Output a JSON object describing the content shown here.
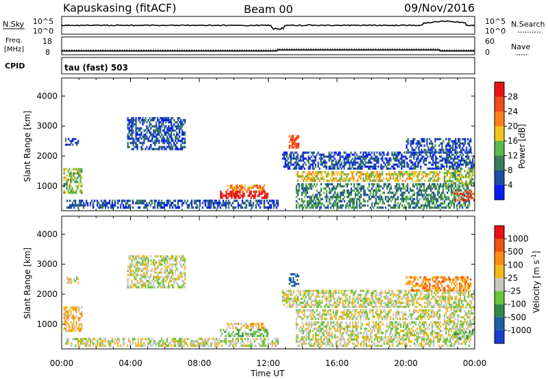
{
  "header": {
    "station": "Kapuskasing (fitACF)",
    "beam": "Beam 00",
    "date": "09/Nov/2016"
  },
  "top_panels": {
    "nsky_label": "N.Sky",
    "nsearch_label": "N.Search",
    "noise_ticks": [
      "10^5",
      "10^0"
    ],
    "noise_ticks_right": [
      "10^5",
      "10^0"
    ],
    "freq_label": "Freq.",
    "freq_unit": "[MHz]",
    "freq_ticks": [
      "18",
      "8"
    ],
    "nave_label": "Nave",
    "nave_ticks": [
      "60",
      "0"
    ],
    "cpid_label": "CPID",
    "cpid_value": "tau (fast) 503"
  },
  "chart_data": [
    {
      "type": "heatmap",
      "name_hint": "power",
      "ylabel": "Slant Range [km]",
      "xlabel": "",
      "x_ticks": [
        "00:00",
        "04:00",
        "08:00",
        "12:00",
        "16:00",
        "20:00",
        "00:00"
      ],
      "y_ticks": [
        1000,
        2000,
        3000,
        4000
      ],
      "ylim": [
        180,
        4600
      ],
      "xlim_hours": [
        0,
        24
      ],
      "colorbar": {
        "label": "Power [dB]",
        "ticks": [
          4,
          8,
          12,
          16,
          20,
          24,
          28
        ],
        "range": [
          0,
          30
        ],
        "colors": [
          "#0a1aff",
          "#1f4fa6",
          "#3d7d59",
          "#5cb84a",
          "#f2c51f",
          "#ff7f1a",
          "#f24a1a",
          "#e81414"
        ]
      },
      "regions": [
        {
          "t0": 0.1,
          "t1": 1.2,
          "r0": 750,
          "r1": 1600,
          "level": 3
        },
        {
          "t0": 0.2,
          "t1": 12.6,
          "r0": 250,
          "r1": 550,
          "level": 1
        },
        {
          "t0": 0.2,
          "t1": 1.0,
          "r0": 2350,
          "r1": 2600,
          "level": 1
        },
        {
          "t0": 3.8,
          "t1": 7.2,
          "r0": 2200,
          "r1": 3300,
          "level": 1
        },
        {
          "t0": 9.2,
          "t1": 12.0,
          "r0": 580,
          "r1": 850,
          "level": 7
        },
        {
          "t0": 9.6,
          "t1": 11.8,
          "r0": 850,
          "r1": 1050,
          "level": 5
        },
        {
          "t0": 13.2,
          "t1": 13.8,
          "r0": 2250,
          "r1": 2700,
          "level": 6
        },
        {
          "t0": 12.8,
          "t1": 24.0,
          "r0": 1550,
          "r1": 2150,
          "level": 1
        },
        {
          "t0": 13.6,
          "t1": 22.0,
          "r0": 1150,
          "r1": 1500,
          "level": 4
        },
        {
          "t0": 13.6,
          "t1": 23.8,
          "r0": 250,
          "r1": 1100,
          "level": 2
        },
        {
          "t0": 22.2,
          "t1": 24.0,
          "r0": 1000,
          "r1": 1600,
          "level": 3
        },
        {
          "t0": 22.8,
          "t1": 24.0,
          "r0": 500,
          "r1": 850,
          "level": 6
        },
        {
          "t0": 20.0,
          "t1": 23.8,
          "r0": 2100,
          "r1": 2600,
          "level": 1
        }
      ]
    },
    {
      "type": "heatmap",
      "name_hint": "velocity",
      "ylabel": "Slant Range [km]",
      "xlabel": "Time UT",
      "x_ticks": [
        "00:00",
        "04:00",
        "08:00",
        "12:00",
        "16:00",
        "20:00",
        "00:00"
      ],
      "y_ticks": [
        1000,
        2000,
        3000,
        4000
      ],
      "ylim": [
        180,
        4600
      ],
      "xlim_hours": [
        0,
        24
      ],
      "colorbar": {
        "label": "Velocity [m s^-1]",
        "ticks": [
          "1000",
          "500",
          "100",
          "25",
          "-25",
          "-100",
          "-500",
          "-1000"
        ],
        "colors": [
          "#1a3fd6",
          "#1f5fa6",
          "#2f8a4a",
          "#69c43a",
          "#c8c8c0",
          "#f5b818",
          "#ff8a10",
          "#f25010",
          "#e81414"
        ]
      },
      "regions": [
        {
          "t0": 0.1,
          "t1": 1.2,
          "r0": 750,
          "r1": 1600,
          "level": 5
        },
        {
          "t0": 0.2,
          "t1": 12.6,
          "r0": 250,
          "r1": 550,
          "level": 4
        },
        {
          "t0": 0.2,
          "t1": 1.0,
          "r0": 2350,
          "r1": 2600,
          "level": 4
        },
        {
          "t0": 3.8,
          "t1": 7.2,
          "r0": 2200,
          "r1": 3300,
          "level": 4
        },
        {
          "t0": 9.2,
          "t1": 12.0,
          "r0": 580,
          "r1": 850,
          "level": 3
        },
        {
          "t0": 9.6,
          "t1": 11.8,
          "r0": 850,
          "r1": 1050,
          "level": 5
        },
        {
          "t0": 13.2,
          "t1": 13.8,
          "r0": 2250,
          "r1": 2700,
          "level": 1
        },
        {
          "t0": 12.8,
          "t1": 24.0,
          "r0": 1550,
          "r1": 2150,
          "level": 4
        },
        {
          "t0": 13.6,
          "t1": 22.0,
          "r0": 1150,
          "r1": 1500,
          "level": 4
        },
        {
          "t0": 13.6,
          "t1": 23.8,
          "r0": 250,
          "r1": 1100,
          "level": 4
        },
        {
          "t0": 22.2,
          "t1": 24.0,
          "r0": 1000,
          "r1": 1600,
          "level": 4
        },
        {
          "t0": 22.8,
          "t1": 24.0,
          "r0": 500,
          "r1": 850,
          "level": 3
        },
        {
          "t0": 20.0,
          "t1": 23.8,
          "r0": 2100,
          "r1": 2600,
          "level": 6
        }
      ]
    }
  ]
}
